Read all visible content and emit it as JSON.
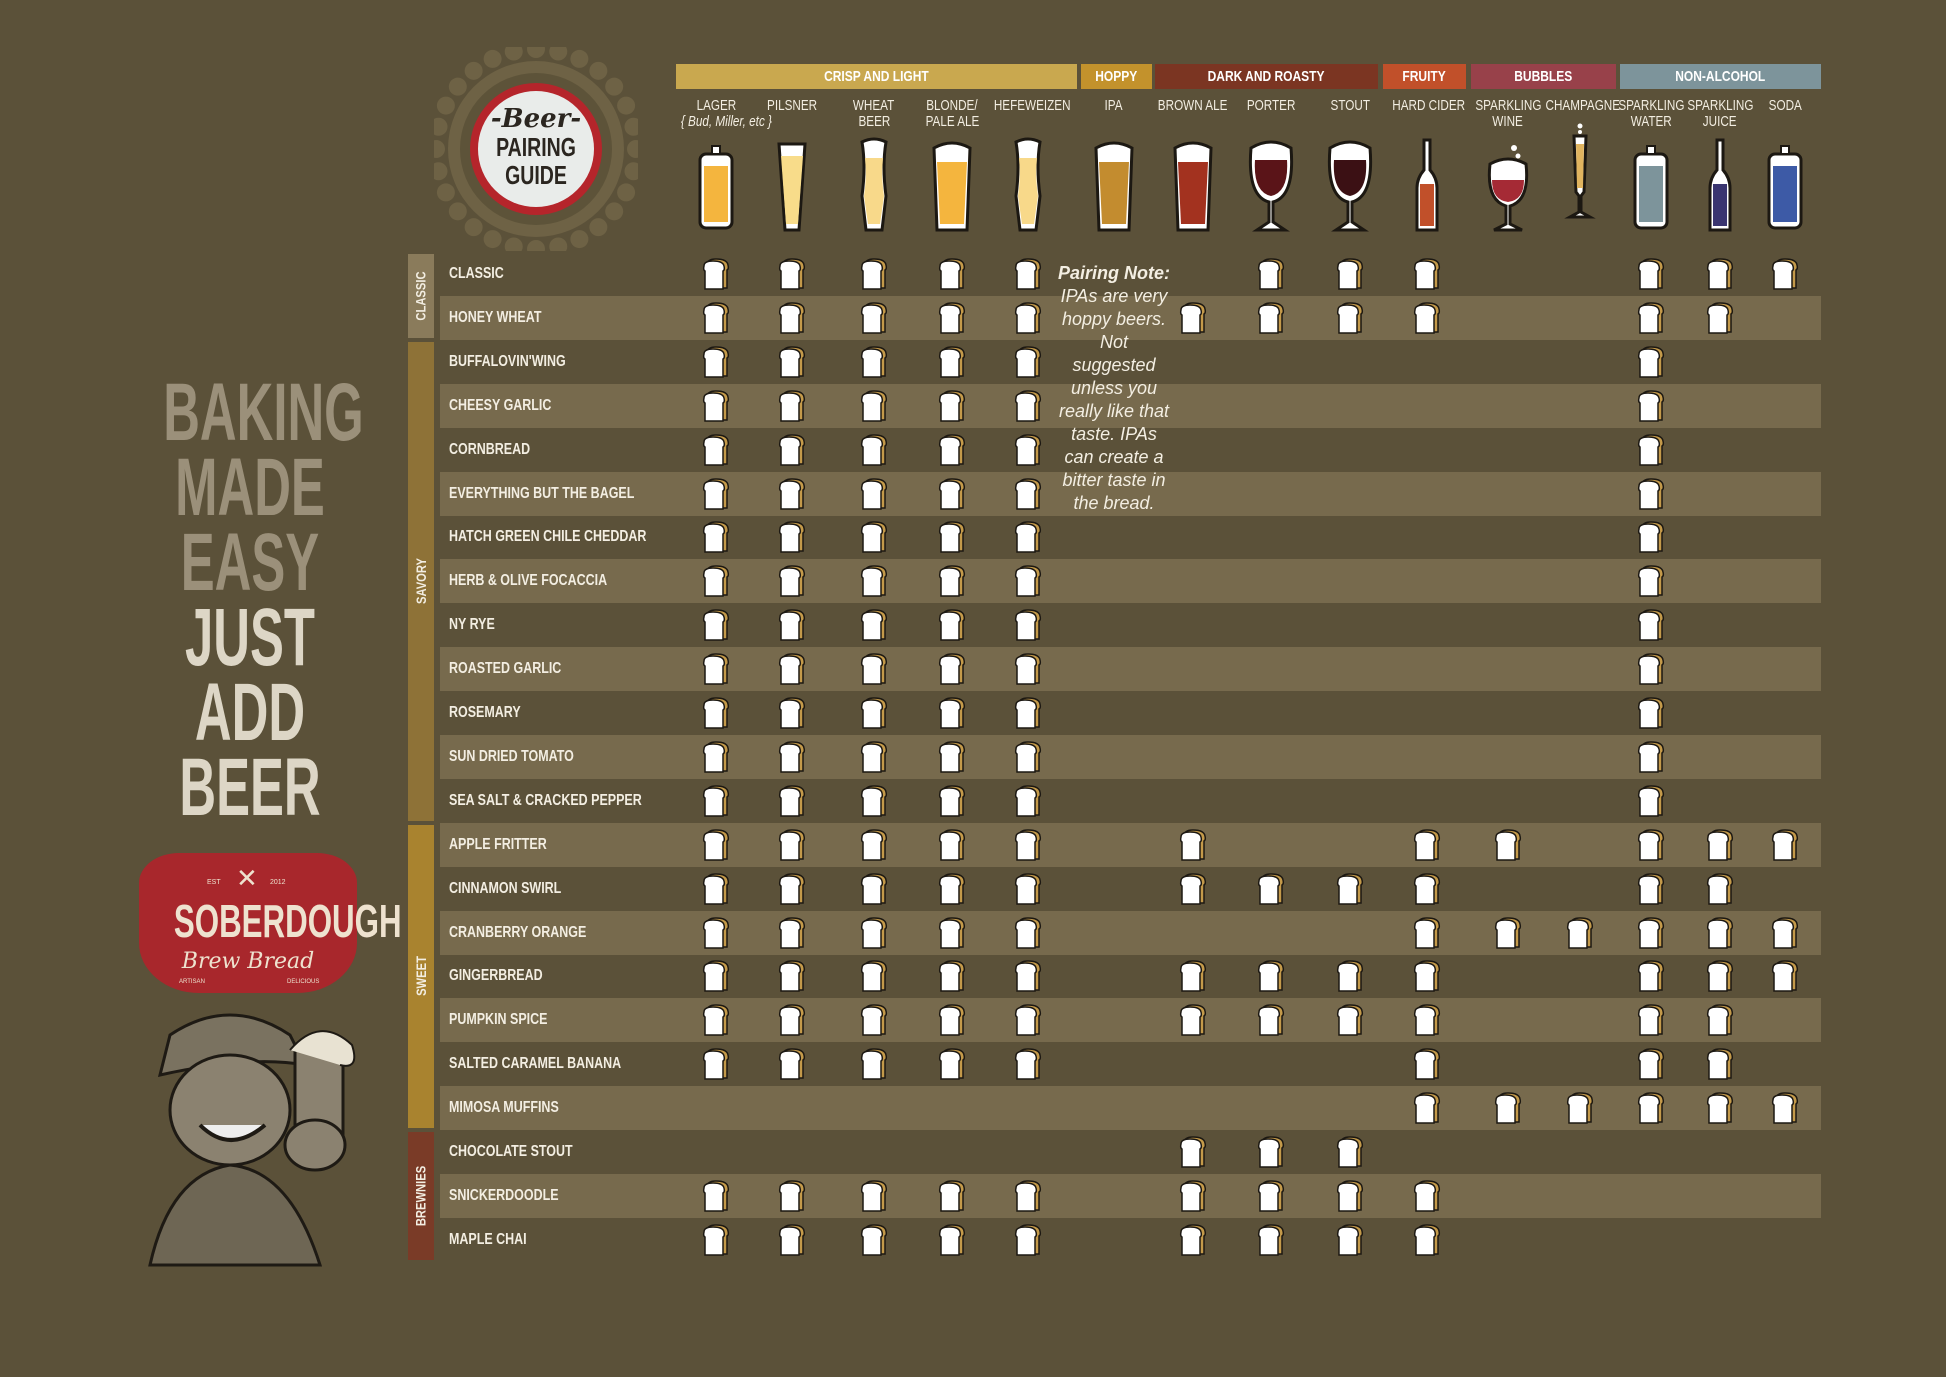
{
  "title_cap": {
    "line1": "-Beer-",
    "line2": "PAIRING",
    "line3": "GUIDE"
  },
  "slogan": {
    "muted": [
      "BAKING",
      "MADE",
      "EASY"
    ],
    "bright": [
      "JUST",
      "ADD",
      "BEER"
    ]
  },
  "brand": {
    "est": "EST",
    "year": "2012",
    "name": "SOBERDOUGH",
    "script": "Brew Bread",
    "left_tag": "ARTISAN",
    "right_tag": "DELICIOUS"
  },
  "groups": [
    {
      "key": "crisp",
      "label": "CRISP AND LIGHT",
      "color": "#c9a84f"
    },
    {
      "key": "hoppy",
      "label": "HOPPY",
      "color": "#c3922c"
    },
    {
      "key": "dark",
      "label": "DARK AND ROASTY",
      "color": "#7b3522"
    },
    {
      "key": "fruity",
      "label": "FRUITY",
      "color": "#c1502a"
    },
    {
      "key": "bubbles",
      "label": "BUBBLES",
      "color": "#98414a"
    },
    {
      "key": "nonalc",
      "label": "NON-ALCOHOL",
      "color": "#7d949b"
    }
  ],
  "columns": [
    {
      "key": "lager",
      "label": [
        "LAGER"
      ],
      "sub": "{ Bud, Miller, etc }",
      "vessel": "can",
      "fill": "#f4b53e"
    },
    {
      "key": "pilsner",
      "label": [
        "PILSNER"
      ],
      "vessel": "pilsner",
      "fill": "#f8dc8a"
    },
    {
      "key": "wheat",
      "label": [
        "WHEAT",
        "BEER"
      ],
      "vessel": "weizen",
      "fill": "#f8d98a"
    },
    {
      "key": "blonde",
      "label": [
        "BLONDE/",
        "PALE ALE"
      ],
      "vessel": "pint",
      "fill": "#f4b53e"
    },
    {
      "key": "hefeweizen",
      "label": [
        "HEFEWEIZEN"
      ],
      "vessel": "weizen",
      "fill": "#f8d98a"
    },
    {
      "key": "ipa",
      "label": [
        "IPA"
      ],
      "vessel": "pint",
      "fill": "#c38c2f"
    },
    {
      "key": "brown_ale",
      "label": [
        "BROWN ALE"
      ],
      "vessel": "pint",
      "fill": "#a3321f"
    },
    {
      "key": "porter",
      "label": [
        "PORTER"
      ],
      "vessel": "goblet",
      "fill": "#5a1418"
    },
    {
      "key": "stout",
      "label": [
        "STOUT"
      ],
      "vessel": "goblet",
      "fill": "#3b1014"
    },
    {
      "key": "hard_cider",
      "label": [
        "HARD CIDER"
      ],
      "vessel": "bottle",
      "fill": "#c1502a"
    },
    {
      "key": "sparkling_wine",
      "label": [
        "SPARKLING",
        "WINE"
      ],
      "vessel": "wine",
      "fill": "#a52a35"
    },
    {
      "key": "champagne",
      "label": [
        "CHAMPAGNE"
      ],
      "vessel": "flute",
      "fill": "#e0b45f"
    },
    {
      "key": "sparkling_water",
      "label": [
        "SPARKLING",
        "WATER"
      ],
      "vessel": "can",
      "fill": "#7d949b"
    },
    {
      "key": "sparkling_juice",
      "label": [
        "SPARKLING",
        "JUICE"
      ],
      "vessel": "bottle",
      "fill": "#3a3570"
    },
    {
      "key": "soda",
      "label": [
        "SODA"
      ],
      "vessel": "can",
      "fill": "#3d5aa6"
    }
  ],
  "pairing_note": {
    "title": "Pairing Note:",
    "text": "IPAs are very hoppy beers. Not suggested unless you really like that taste. IPAs can create a bitter taste in the bread."
  },
  "categories": [
    {
      "label": "CLASSIC",
      "color": "#8a7b5b",
      "rows": 2
    },
    {
      "label": "SAVORY",
      "color": "#8e7237",
      "rows": 11
    },
    {
      "label": "SWEET",
      "color": "#a9832f",
      "rows": 7
    },
    {
      "label": "BREWNIES",
      "color": "#7a3b27",
      "rows": 3
    }
  ],
  "rows": [
    {
      "name": "CLASSIC",
      "pairs": [
        "lager",
        "pilsner",
        "wheat",
        "blonde",
        "hefeweizen",
        "porter",
        "stout",
        "hard_cider",
        "sparkling_water",
        "sparkling_juice",
        "soda"
      ]
    },
    {
      "name": "HONEY WHEAT",
      "pairs": [
        "lager",
        "pilsner",
        "wheat",
        "blonde",
        "hefeweizen",
        "brown_ale",
        "porter",
        "stout",
        "hard_cider",
        "sparkling_water",
        "sparkling_juice"
      ]
    },
    {
      "name": "BUFFALOVIN'WING",
      "pairs": [
        "lager",
        "pilsner",
        "wheat",
        "blonde",
        "hefeweizen",
        "sparkling_water"
      ]
    },
    {
      "name": "CHEESY GARLIC",
      "pairs": [
        "lager",
        "pilsner",
        "wheat",
        "blonde",
        "hefeweizen",
        "sparkling_water"
      ]
    },
    {
      "name": "CORNBREAD",
      "pairs": [
        "lager",
        "pilsner",
        "wheat",
        "blonde",
        "hefeweizen",
        "sparkling_water"
      ]
    },
    {
      "name": "EVERYTHING BUT THE BAGEL",
      "pairs": [
        "lager",
        "pilsner",
        "wheat",
        "blonde",
        "hefeweizen",
        "sparkling_water"
      ]
    },
    {
      "name": "HATCH GREEN CHILE CHEDDAR",
      "pairs": [
        "lager",
        "pilsner",
        "wheat",
        "blonde",
        "hefeweizen",
        "sparkling_water"
      ]
    },
    {
      "name": "HERB & OLIVE FOCACCIA",
      "pairs": [
        "lager",
        "pilsner",
        "wheat",
        "blonde",
        "hefeweizen",
        "sparkling_water"
      ]
    },
    {
      "name": "NY RYE",
      "pairs": [
        "lager",
        "pilsner",
        "wheat",
        "blonde",
        "hefeweizen",
        "sparkling_water"
      ]
    },
    {
      "name": "ROASTED GARLIC",
      "pairs": [
        "lager",
        "pilsner",
        "wheat",
        "blonde",
        "hefeweizen",
        "sparkling_water"
      ]
    },
    {
      "name": "ROSEMARY",
      "pairs": [
        "lager",
        "pilsner",
        "wheat",
        "blonde",
        "hefeweizen",
        "sparkling_water"
      ]
    },
    {
      "name": "SUN DRIED TOMATO",
      "pairs": [
        "lager",
        "pilsner",
        "wheat",
        "blonde",
        "hefeweizen",
        "sparkling_water"
      ]
    },
    {
      "name": "SEA SALT & CRACKED PEPPER",
      "pairs": [
        "lager",
        "pilsner",
        "wheat",
        "blonde",
        "hefeweizen",
        "sparkling_water"
      ]
    },
    {
      "name": "APPLE FRITTER",
      "pairs": [
        "lager",
        "pilsner",
        "wheat",
        "blonde",
        "hefeweizen",
        "brown_ale",
        "hard_cider",
        "sparkling_wine",
        "sparkling_water",
        "sparkling_juice",
        "soda"
      ]
    },
    {
      "name": "CINNAMON SWIRL",
      "pairs": [
        "lager",
        "pilsner",
        "wheat",
        "blonde",
        "hefeweizen",
        "brown_ale",
        "porter",
        "stout",
        "hard_cider",
        "sparkling_water",
        "sparkling_juice"
      ]
    },
    {
      "name": "CRANBERRY ORANGE",
      "pairs": [
        "lager",
        "pilsner",
        "wheat",
        "blonde",
        "hefeweizen",
        "hard_cider",
        "sparkling_wine",
        "champagne",
        "sparkling_water",
        "sparkling_juice",
        "soda"
      ]
    },
    {
      "name": "GINGERBREAD",
      "pairs": [
        "lager",
        "pilsner",
        "wheat",
        "blonde",
        "hefeweizen",
        "brown_ale",
        "porter",
        "stout",
        "hard_cider",
        "sparkling_water",
        "sparkling_juice",
        "soda"
      ]
    },
    {
      "name": "PUMPKIN SPICE",
      "pairs": [
        "lager",
        "pilsner",
        "wheat",
        "blonde",
        "hefeweizen",
        "brown_ale",
        "porter",
        "stout",
        "hard_cider",
        "sparkling_water",
        "sparkling_juice"
      ]
    },
    {
      "name": "SALTED CARAMEL BANANA",
      "pairs": [
        "lager",
        "pilsner",
        "wheat",
        "blonde",
        "hefeweizen",
        "hard_cider",
        "sparkling_water",
        "sparkling_juice"
      ]
    },
    {
      "name": "MIMOSA MUFFINS",
      "pairs": [
        "hard_cider",
        "sparkling_wine",
        "champagne",
        "sparkling_water",
        "sparkling_juice",
        "soda"
      ]
    },
    {
      "name": "CHOCOLATE STOUT",
      "pairs": [
        "brown_ale",
        "porter",
        "stout"
      ]
    },
    {
      "name": "SNICKERDOODLE",
      "pairs": [
        "lager",
        "pilsner",
        "wheat",
        "blonde",
        "hefeweizen",
        "brown_ale",
        "porter",
        "stout",
        "hard_cider"
      ]
    },
    {
      "name": "MAPLE CHAI",
      "pairs": [
        "lager",
        "pilsner",
        "wheat",
        "blonde",
        "hefeweizen",
        "brown_ale",
        "porter",
        "stout",
        "hard_cider"
      ]
    }
  ]
}
